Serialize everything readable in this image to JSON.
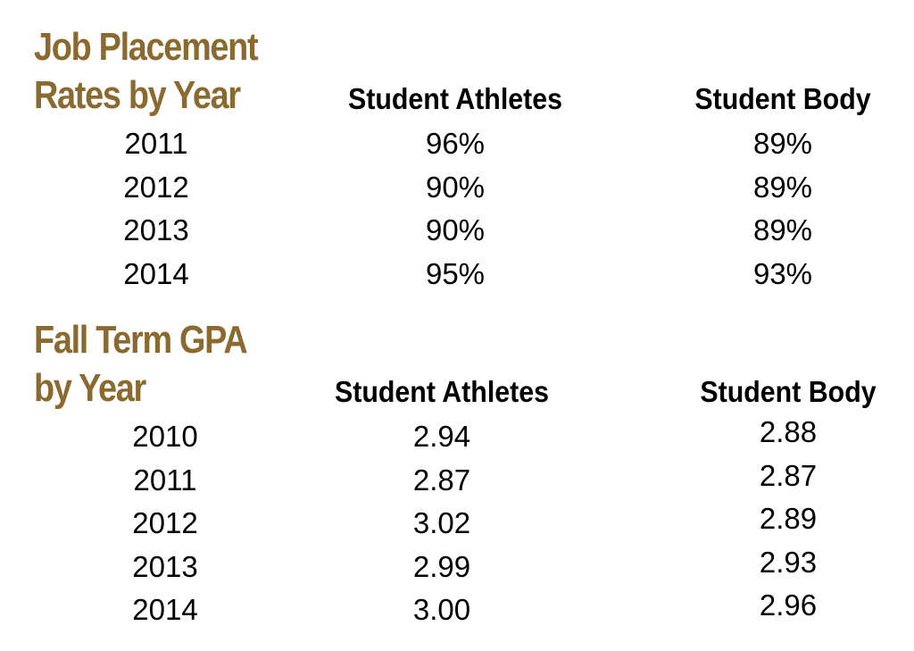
{
  "colors": {
    "title": "#8a6a2e",
    "text": "#000000",
    "background": "#ffffff"
  },
  "chart_data": [
    {
      "type": "table",
      "title_lines": [
        "Job Placement",
        "Rates by Year"
      ],
      "columns": [
        "Student Athletes",
        "Student Body"
      ],
      "rows": [
        {
          "year": "2011",
          "values": [
            "96%",
            "89%"
          ]
        },
        {
          "year": "2012",
          "values": [
            "90%",
            "89%"
          ]
        },
        {
          "year": "2013",
          "values": [
            "90%",
            "89%"
          ]
        },
        {
          "year": "2014",
          "values": [
            "95%",
            "93%"
          ]
        }
      ]
    },
    {
      "type": "table",
      "title_lines": [
        "Fall Term GPA",
        "by Year"
      ],
      "columns": [
        "Student Athletes",
        "Student Body"
      ],
      "rows": [
        {
          "year": "2010",
          "values": [
            "2.94",
            "2.88"
          ]
        },
        {
          "year": "2011",
          "values": [
            "2.87",
            "2.87"
          ]
        },
        {
          "year": "2012",
          "values": [
            "3.02",
            "2.89"
          ]
        },
        {
          "year": "2013",
          "values": [
            "2.99",
            "2.93"
          ]
        },
        {
          "year": "2014",
          "values": [
            "3.00",
            "2.96"
          ]
        }
      ]
    }
  ]
}
